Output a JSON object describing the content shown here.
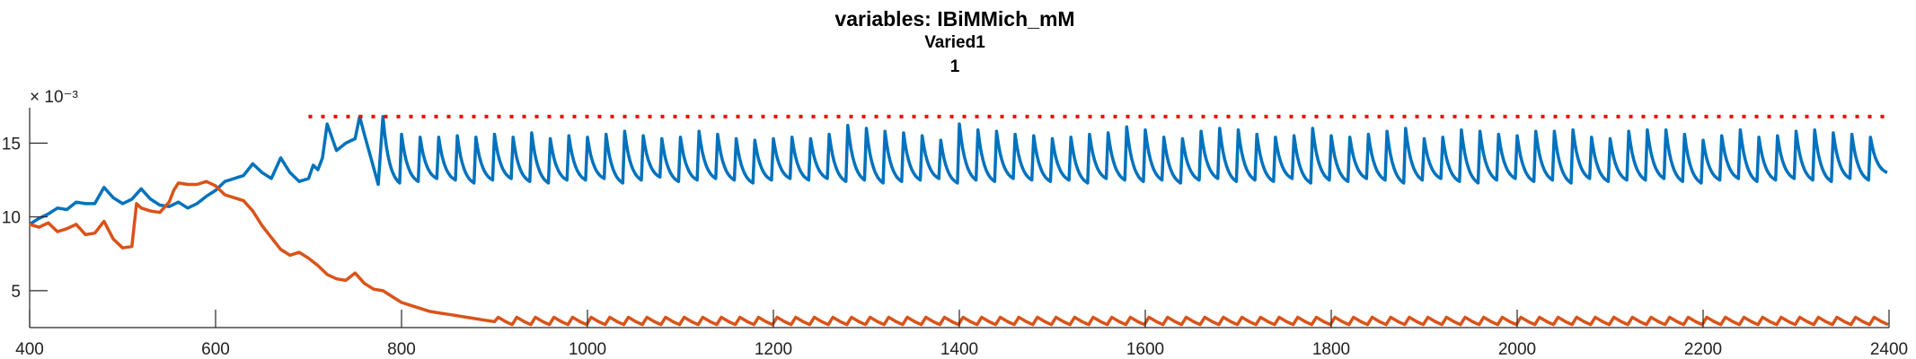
{
  "chart_data": {
    "type": "line",
    "title": "variables: IBiMMich_mM",
    "subtitle": "Varied1",
    "subtitle2": "1",
    "xlabel": "",
    "ylabel": "",
    "xlim": [
      400,
      2400
    ],
    "ylim": [
      2.5,
      17.4
    ],
    "y_exponent_label": "× 10⁻³",
    "x_ticks": [
      400,
      600,
      800,
      1000,
      1200,
      1400,
      1600,
      1800,
      2000,
      2200,
      2400
    ],
    "x_tick_labels": [
      "400",
      "600",
      "800",
      "1000",
      "1200",
      "1400",
      "1600",
      "1800",
      "2000",
      "2200",
      "2400"
    ],
    "y_ticks": [
      5,
      10,
      15
    ],
    "y_tick_labels": [
      "5",
      "10",
      "15"
    ],
    "grid": false,
    "legend": "none",
    "series": [
      {
        "color": "#0072BD",
        "style": "solid",
        "x": [
          400,
          410,
          420,
          430,
          440,
          450,
          460,
          470,
          480,
          490,
          500,
          510,
          520,
          530,
          540,
          550,
          560,
          570,
          580,
          590,
          600,
          610,
          620,
          630,
          640,
          650,
          660,
          670,
          680,
          690,
          700,
          705,
          710,
          715,
          720,
          730,
          740,
          750,
          755,
          760,
          775,
          780
        ],
        "y": [
          9.5,
          9.9,
          10.2,
          10.6,
          10.5,
          11.0,
          10.9,
          10.9,
          12.0,
          11.3,
          10.9,
          11.2,
          11.9,
          11.2,
          10.8,
          10.7,
          11.0,
          10.6,
          10.9,
          11.4,
          11.8,
          12.4,
          12.6,
          12.8,
          13.6,
          13.0,
          12.6,
          14.0,
          13.0,
          12.4,
          12.6,
          13.5,
          13.2,
          14.0,
          16.3,
          14.5,
          15.0,
          15.3,
          16.8,
          15.6,
          12.2,
          16.8
        ],
        "oscillation": {
          "x_start": 780,
          "x_end": 2400,
          "period": 20,
          "peak_values": [
            16.8,
            15.6,
            15.4,
            15.4,
            15.5,
            15.4,
            15.6,
            15.4,
            15.7,
            15.3,
            15.5,
            15.4,
            15.6,
            15.8,
            15.5,
            15.3,
            15.4,
            15.8,
            15.6,
            15.3,
            15.2,
            15.3,
            15.4,
            15.3,
            15.6,
            16.2,
            16.0,
            15.8,
            15.7,
            15.5,
            15.2,
            16.3,
            15.9,
            15.8,
            15.6,
            15.5,
            15.3,
            15.4,
            15.6,
            15.7,
            16.1,
            15.9,
            15.4,
            15.3,
            15.8,
            16.0,
            15.9,
            15.6,
            15.4,
            15.5,
            16.0,
            15.5,
            15.4,
            15.6,
            15.8,
            16.0,
            15.3,
            15.4,
            15.9,
            15.8,
            15.6,
            15.5,
            15.8,
            15.8,
            15.9,
            15.4,
            15.3,
            15.8,
            15.9,
            15.9,
            15.6,
            15.2,
            15.5,
            15.9,
            15.4,
            15.5,
            15.8,
            15.9,
            15.7,
            15.6,
            15.4
          ],
          "trough_values": [
            12.3,
            12.4,
            12.6,
            12.5,
            12.3,
            12.5,
            12.6,
            12.4,
            12.3,
            12.5,
            12.5,
            12.6,
            12.3,
            12.5,
            12.7,
            12.4,
            12.5,
            12.6,
            12.5,
            12.3,
            12.5,
            12.6,
            12.5,
            12.6,
            12.4,
            12.5,
            12.3,
            12.4,
            12.5,
            12.6,
            12.3,
            12.5,
            12.4,
            12.6,
            12.5,
            12.4,
            12.5,
            12.3,
            12.6,
            12.5,
            12.4,
            12.5,
            12.3,
            12.5,
            12.6,
            12.4,
            12.5,
            12.4,
            12.6,
            12.3,
            12.5,
            12.4,
            12.6,
            12.5,
            12.3,
            12.5,
            12.6,
            12.4,
            12.3,
            12.5,
            12.6,
            12.4,
            12.5,
            12.3,
            12.6,
            12.4,
            12.5,
            12.5,
            12.6,
            12.4,
            12.3,
            12.5,
            12.6,
            12.4,
            12.5,
            12.6,
            12.5,
            12.4,
            12.6,
            12.5,
            13.0
          ]
        }
      },
      {
        "color": "#D95319",
        "style": "solid",
        "x": [
          400,
          410,
          420,
          430,
          440,
          450,
          460,
          470,
          480,
          490,
          500,
          510,
          515,
          520,
          530,
          540,
          550,
          555,
          560,
          570,
          580,
          590,
          600,
          610,
          620,
          630,
          640,
          650,
          660,
          670,
          680,
          690,
          700,
          710,
          720,
          730,
          740,
          750,
          760,
          770,
          780,
          790,
          800,
          810,
          820,
          830,
          840,
          850,
          860,
          870,
          880,
          890,
          900
        ],
        "y": [
          9.5,
          9.3,
          9.6,
          9.0,
          9.2,
          9.5,
          8.8,
          8.9,
          9.7,
          8.5,
          7.9,
          8.0,
          10.9,
          10.6,
          10.4,
          10.3,
          11.0,
          11.8,
          12.3,
          12.2,
          12.2,
          12.4,
          12.1,
          11.5,
          11.3,
          11.1,
          10.4,
          9.4,
          8.6,
          7.8,
          7.4,
          7.6,
          7.2,
          6.7,
          6.1,
          5.8,
          5.7,
          6.2,
          5.5,
          5.1,
          5.0,
          4.6,
          4.2,
          4.0,
          3.8,
          3.6,
          3.5,
          3.4,
          3.3,
          3.2,
          3.1,
          3.0,
          2.9
        ],
        "oscillation": {
          "x_start": 900,
          "x_end": 2400,
          "period": 20,
          "trough_value": 2.7,
          "peak_value": 3.2
        }
      },
      {
        "color": "#FF0000",
        "style": "dotted",
        "x": [
          700,
          2400
        ],
        "y": [
          16.8,
          16.8
        ]
      }
    ]
  }
}
